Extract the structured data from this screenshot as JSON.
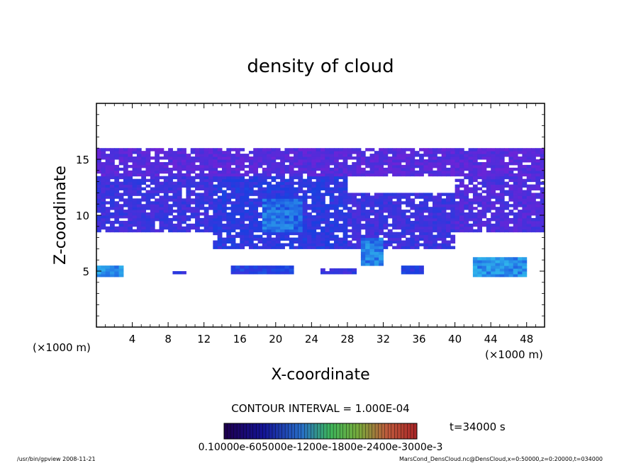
{
  "chart_data": {
    "type": "heatmap",
    "title": "density of cloud",
    "xlabel": "X-coordinate",
    "ylabel": "Z-coordinate",
    "x_unit": "(×1000 m)",
    "y_unit": "(×1000 m)",
    "xlim": [
      0,
      50
    ],
    "ylim": [
      0,
      20
    ],
    "x_ticks": [
      4,
      8,
      12,
      16,
      20,
      24,
      28,
      32,
      36,
      40,
      44,
      48
    ],
    "y_ticks": [
      5,
      10,
      15
    ],
    "contour_interval": "CONTOUR INTERVAL = 1.000E-04",
    "time_label": "t=34000 s",
    "colorbar_labels": "0.10000e-605000e-1200e-1800e-2400e-3000e-3",
    "colors": {
      "background": "#ffffff",
      "low": "#7a1fd6",
      "mid": "#1a3fe0",
      "high": "#33ccee"
    },
    "cloud_regions": [
      {
        "x0": 0,
        "x1": 50,
        "z0": 13.5,
        "z1": 16,
        "level": 0.2
      },
      {
        "x0": 0,
        "x1": 13,
        "z0": 8.5,
        "z1": 13.5,
        "level": 0.35
      },
      {
        "x0": 13,
        "x1": 28,
        "z0": 7,
        "z1": 13.5,
        "level": 0.45
      },
      {
        "x0": 28,
        "x1": 40,
        "z0": 7,
        "z1": 12,
        "level": 0.35
      },
      {
        "x0": 40,
        "x1": 50,
        "z0": 8.5,
        "z1": 13.5,
        "level": 0.25
      },
      {
        "x0": 18.5,
        "x1": 23,
        "z0": 8.5,
        "z1": 11.5,
        "level": 0.7
      },
      {
        "x0": 29.5,
        "x1": 32,
        "z0": 5.5,
        "z1": 8,
        "level": 0.75
      },
      {
        "x0": 0,
        "x1": 3,
        "z0": 4.5,
        "z1": 5.5,
        "level": 0.8
      },
      {
        "x0": 15,
        "x1": 22,
        "z0": 4.6,
        "z1": 5.4,
        "level": 0.5
      },
      {
        "x0": 34,
        "x1": 36.5,
        "z0": 4.6,
        "z1": 5.5,
        "level": 0.5
      },
      {
        "x0": 42,
        "x1": 48,
        "z0": 4.5,
        "z1": 6.2,
        "level": 0.8
      },
      {
        "x0": 8,
        "x1": 10,
        "z0": 4.6,
        "z1": 5.0,
        "level": 0.4
      },
      {
        "x0": 25,
        "x1": 29,
        "z0": 4.6,
        "z1": 5.1,
        "level": 0.4
      }
    ],
    "grid": false
  },
  "footer": {
    "left": "/usr/bin/gpview   2008-11-21",
    "right": "MarsCond_DensCloud.nc@DensCloud,x=0:50000,z=0:20000,t=034000"
  }
}
